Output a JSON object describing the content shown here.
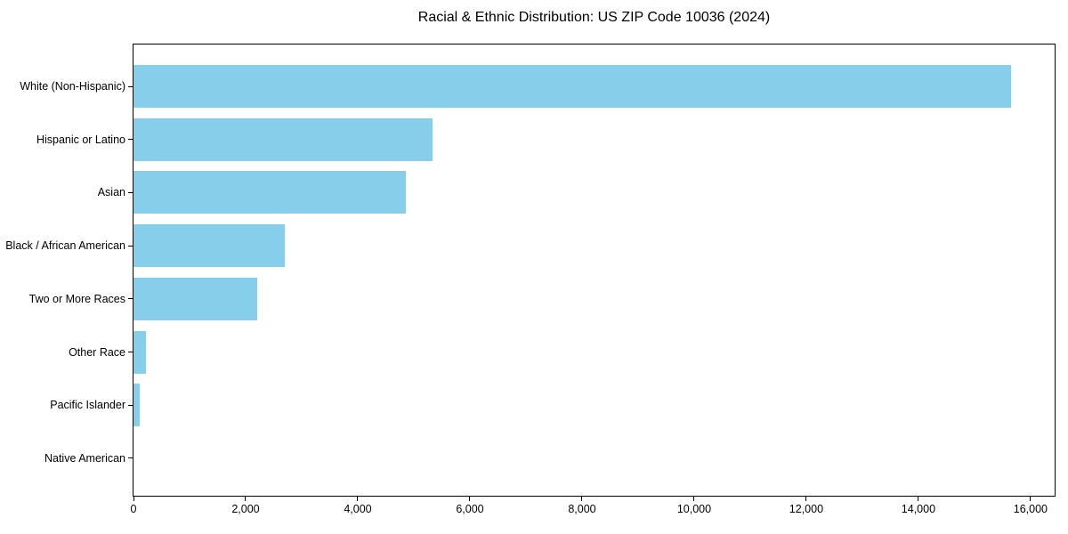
{
  "chart_data": {
    "type": "bar",
    "orientation": "horizontal",
    "title": "Racial & Ethnic Distribution: US ZIP Code 10036 (2024)",
    "categories": [
      "White (Non-Hispanic)",
      "Hispanic or Latino",
      "Asian",
      "Black / African American",
      "Two or More Races",
      "Other Race",
      "Pacific Islander",
      "Native American"
    ],
    "values": [
      15650,
      5340,
      4850,
      2700,
      2200,
      220,
      110,
      0
    ],
    "bar_color": "#87CEEB",
    "axis_color": "#000000",
    "text_color": "#000000",
    "plot_background": "#ffffff",
    "xlabel": "",
    "ylabel": "",
    "xlim": [
      0,
      16430
    ],
    "x_ticks": [
      0,
      2000,
      4000,
      6000,
      8000,
      10000,
      12000,
      14000,
      16000
    ],
    "x_tick_labels": [
      "0",
      "2,000",
      "4,000",
      "6,000",
      "8,000",
      "10,000",
      "12,000",
      "14,000",
      "16,000"
    ],
    "grid": false,
    "legend": "none",
    "bar_height_frac": 0.8
  }
}
